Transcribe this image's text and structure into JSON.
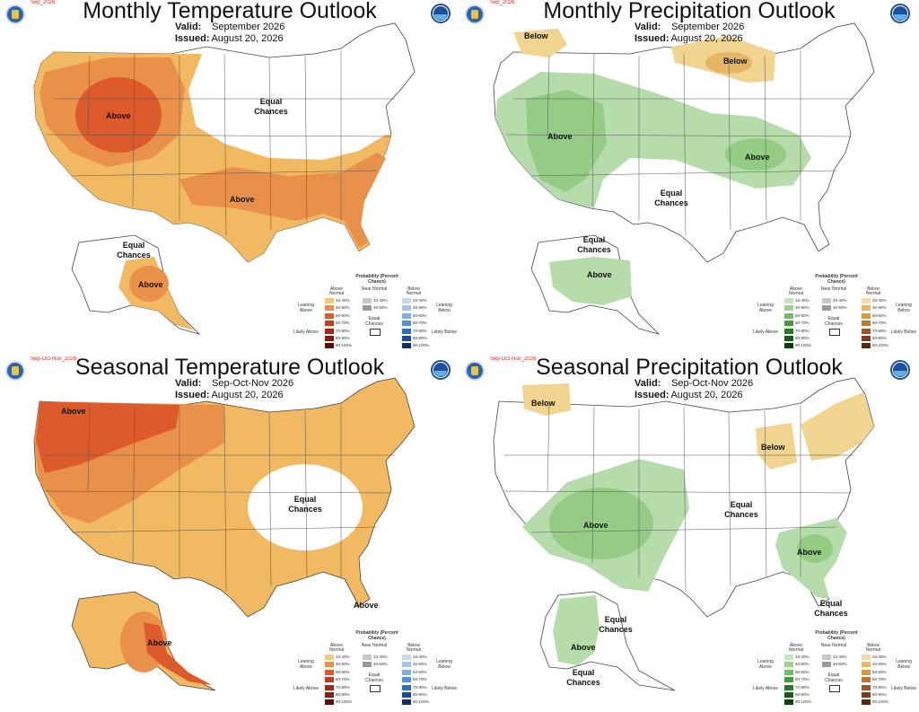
{
  "panels": [
    {
      "id": "monthly-temp",
      "title": "Monthly Temperature Outlook",
      "valid_label": "Valid:",
      "valid": "September 2026",
      "issued_label": "Issued:",
      "issued": "August 20, 2026",
      "tag": "Sep_2026",
      "labels": [
        "Above",
        "Equal Chances",
        "Above",
        "Equal Chances",
        "Above"
      ]
    },
    {
      "id": "monthly-precip",
      "title": "Monthly Precipitation Outlook",
      "valid_label": "Valid:",
      "valid": "September 2026",
      "issued_label": "Issued:",
      "issued": "August 20, 2026",
      "tag": "Sep_2026",
      "labels": [
        "Below",
        "Below",
        "Above",
        "Above",
        "Equal Chances",
        "Equal Chances",
        "Above"
      ]
    },
    {
      "id": "seasonal-temp",
      "title": "Seasonal Temperature Outlook",
      "valid_label": "Valid:",
      "valid": "Sep-Oct-Nov 2026",
      "issued_label": "Issued:",
      "issued": "August 20, 2026",
      "tag": "Sep-Oct-Nov_2026",
      "labels": [
        "Above",
        "Equal Chances",
        "Above",
        "Above"
      ]
    },
    {
      "id": "seasonal-precip",
      "title": "Seasonal Precipitation Outlook",
      "valid_label": "Valid:",
      "valid": "Sep-Oct-Nov 2026",
      "issued_label": "Issued:",
      "issued": "August 20, 2026",
      "tag": "Sep-Oct-Nov_2026",
      "labels": [
        "Below",
        "Below",
        "Equal Chances",
        "Above",
        "Above",
        "Equal Chances",
        "Equal Chances",
        "Above",
        "Equal Chances"
      ]
    }
  ],
  "legend": {
    "title": "Probability (Percent Chance)",
    "temp": {
      "above_head": "Above Normal",
      "near_head": "Near Normal",
      "below_head": "Below Normal",
      "leaning_above": "Leaning Above",
      "likely_above": "Likely Above",
      "leaning_below": "Leaning Below",
      "likely_below": "Likely Below",
      "equal": "Equal Chances",
      "ranges": [
        "33-40%",
        "40-50%",
        "50-60%",
        "60-70%",
        "70-80%",
        "80-90%",
        "90-100%"
      ],
      "near_ranges": [
        "33-40%",
        "40-50%"
      ],
      "above_colors": [
        "#f3c77a",
        "#e8904a",
        "#dc5a2b",
        "#c83a1c",
        "#a82512",
        "#8a1a0d",
        "#5e0e06"
      ],
      "below_colors": [
        "#c6d9ef",
        "#a6c5e6",
        "#7cb1df",
        "#4d93d6",
        "#2b70c2",
        "#1c4b9a",
        "#142c6b"
      ],
      "near_colors": [
        "#c8c8c8",
        "#9a9a9a"
      ]
    },
    "precip": {
      "above_head": "Above Normal",
      "near_head": "Near Normal",
      "below_head": "Below Normal",
      "leaning_above": "Leaning Above",
      "likely_above": "Likely Above",
      "leaning_below": "Leaning Below",
      "likely_below": "Likely Below",
      "equal": "Equal Chances",
      "ranges": [
        "33-40%",
        "40-50%",
        "50-60%",
        "60-70%",
        "70-80%",
        "80-90%",
        "90-100%"
      ],
      "near_ranges": [
        "33-40%",
        "40-50%"
      ],
      "above_colors": [
        "#c5e3bf",
        "#9fd193",
        "#6fbf66",
        "#3f9e3a",
        "#237d22",
        "#145f16",
        "#0a400c"
      ],
      "below_colors": [
        "#f3dca4",
        "#e6b85f",
        "#d89a3c",
        "#c0772d",
        "#a05624",
        "#7d3c1a",
        "#5a2812"
      ],
      "near_colors": [
        "#c8c8c8",
        "#9a9a9a"
      ]
    }
  },
  "colors": {
    "temp_lean_above": "#f0b962",
    "temp_40_50": "#e9914b",
    "temp_50_60": "#dc5a2b",
    "precip_lean_above": "#b7dcac",
    "precip_40_50": "#94cc86",
    "precip_lean_below": "#f0d48f",
    "precip_40_50_below": "#e4b665"
  }
}
